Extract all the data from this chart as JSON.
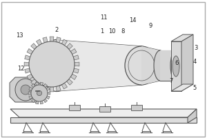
{
  "title": "",
  "background_color": "#ffffff",
  "border_color": "#aaaaaa",
  "line_color": "#555555",
  "label_color": "#222222",
  "figsize": [
    3.0,
    2.0
  ],
  "dpi": 100
}
